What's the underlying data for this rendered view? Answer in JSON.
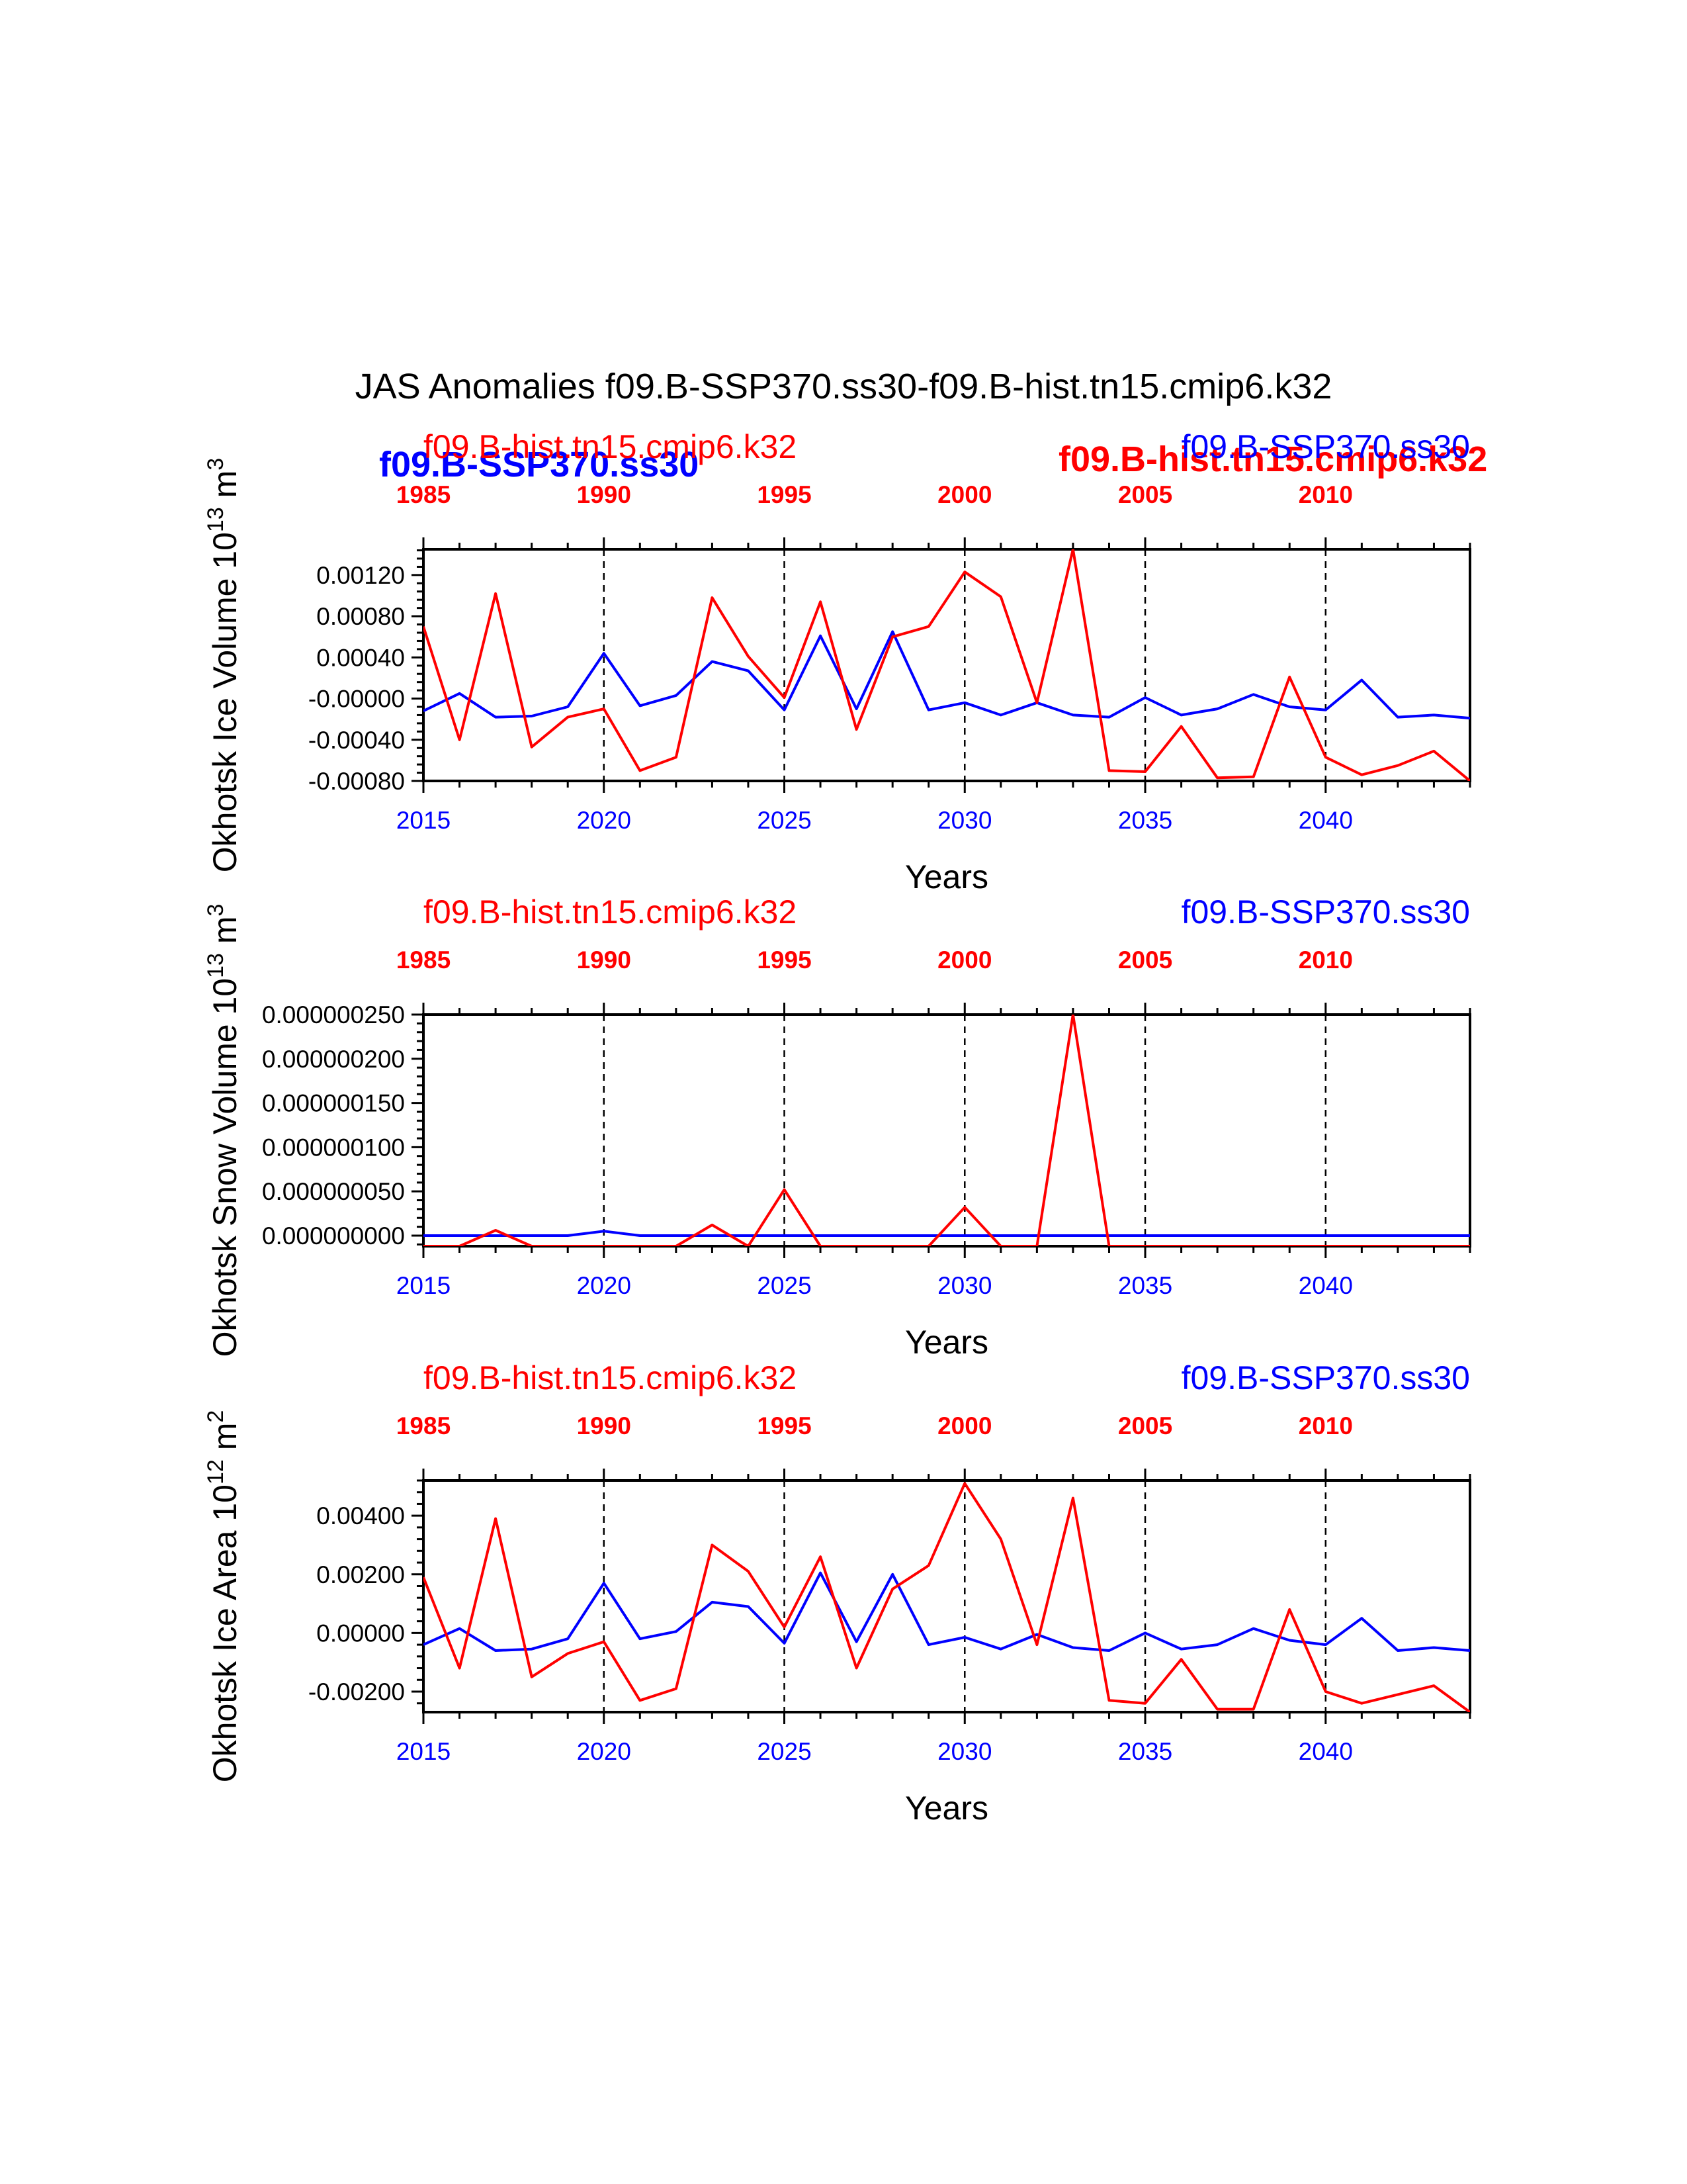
{
  "figure": {
    "title": "JAS Anomalies f09.B-SSP370.ss30-f09.B-hist.tn15.cmip6.k32",
    "xlabel": "Years",
    "colors": {
      "ssp": "#0000ff",
      "hist": "#ff0000",
      "axes": "#000000"
    },
    "overlay_labels": {
      "ssp_bold": "f09.B-SSP370.ss30",
      "hist_bold": "f09.B-hist.tn15.cmip6.k32"
    }
  },
  "chart_data": [
    {
      "type": "line",
      "ylabel": "Okhotsk Ice Volume 10",
      "ylabel_exp": "13",
      "ylabel_unit": " m",
      "ylabel_unit_exp": "3",
      "ylim": [
        -0.0008,
        0.00145
      ],
      "yticks": [
        -0.0008,
        -0.0004,
        0.0,
        0.0004,
        0.0008,
        0.0012
      ],
      "ytick_labels": [
        "-0.00080",
        "-0.00040",
        "-0.00000",
        "0.00040",
        "0.00080",
        "0.00120"
      ],
      "bottom_xlim": [
        2015,
        2044
      ],
      "bottom_ticks": [
        2015,
        2020,
        2025,
        2030,
        2035,
        2040
      ],
      "top_xlim": [
        1985,
        2014
      ],
      "top_ticks": [
        1985,
        1990,
        1995,
        2000,
        2005,
        2010
      ],
      "hist_label": "f09.B-hist.tn15.cmip6.k32",
      "ssp_label": "f09.B-SSP370.ss30",
      "series": [
        {
          "name": "f09.B-SSP370.ss30",
          "x": [
            2015,
            2016,
            2017,
            2018,
            2019,
            2020,
            2021,
            2022,
            2023,
            2024,
            2025,
            2026,
            2027,
            2028,
            2029,
            2030,
            2031,
            2032,
            2033,
            2034,
            2035,
            2036,
            2037,
            2038,
            2039,
            2040,
            2041,
            2042,
            2043,
            2044
          ],
          "values": [
            -0.00012,
            5e-05,
            -0.00018,
            -0.00017,
            -8e-05,
            0.00044,
            -7e-05,
            3e-05,
            0.00036,
            0.00027,
            -0.00011,
            0.00061,
            -0.0001,
            0.00065,
            -0.00011,
            -4e-05,
            -0.00016,
            -4e-05,
            -0.00016,
            -0.00018,
            1e-05,
            -0.00016,
            -0.0001,
            4e-05,
            -8e-05,
            -0.00011,
            0.00018,
            -0.00018,
            -0.00016,
            -0.00019
          ]
        },
        {
          "name": "f09.B-hist.tn15.cmip6.k32",
          "x": [
            1985,
            1986,
            1987,
            1988,
            1989,
            1990,
            1991,
            1992,
            1993,
            1994,
            1995,
            1996,
            1997,
            1998,
            1999,
            2000,
            2001,
            2002,
            2003,
            2004,
            2005,
            2006,
            2007,
            2008,
            2009,
            2010,
            2011,
            2012,
            2013,
            2014
          ],
          "values": [
            0.0007,
            -0.0004,
            0.00102,
            -0.00047,
            -0.00018,
            -0.0001,
            -0.0007,
            -0.00057,
            0.00098,
            0.00041,
            1e-05,
            0.00094,
            -0.0003,
            0.0006,
            0.0007,
            0.00123,
            0.00099,
            -4e-05,
            0.00145,
            -0.0007,
            -0.00071,
            -0.00027,
            -0.00077,
            -0.00076,
            0.00021,
            -0.00057,
            -0.00074,
            -0.00065,
            -0.00051,
            -0.0008
          ]
        }
      ]
    },
    {
      "type": "line",
      "ylabel": "Okhotsk Snow Volume 10",
      "ylabel_exp": "13",
      "ylabel_unit": " m",
      "ylabel_unit_exp": "3",
      "ylim": [
        -1.2e-08,
        2.5e-07
      ],
      "yticks": [
        0.0,
        5e-08,
        1e-07,
        1.5e-07,
        2e-07,
        2.5e-07
      ],
      "ytick_labels": [
        "0.000000000",
        "0.000000050",
        "0.000000100",
        "0.000000150",
        "0.000000200",
        "0.000000250"
      ],
      "bottom_xlim": [
        2015,
        2044
      ],
      "bottom_ticks": [
        2015,
        2020,
        2025,
        2030,
        2035,
        2040
      ],
      "top_xlim": [
        1985,
        2014
      ],
      "top_ticks": [
        1985,
        1990,
        1995,
        2000,
        2005,
        2010
      ],
      "hist_label": "f09.B-hist.tn15.cmip6.k32",
      "ssp_label": "f09.B-SSP370.ss30",
      "series": [
        {
          "name": "f09.B-SSP370.ss30",
          "x": [
            2015,
            2016,
            2017,
            2018,
            2019,
            2020,
            2021,
            2022,
            2023,
            2024,
            2025,
            2026,
            2027,
            2028,
            2029,
            2030,
            2031,
            2032,
            2033,
            2034,
            2035,
            2036,
            2037,
            2038,
            2039,
            2040,
            2041,
            2042,
            2043,
            2044
          ],
          "values": [
            0,
            0,
            0,
            0,
            0,
            5e-09,
            0,
            0,
            0,
            0,
            0,
            0,
            0,
            0,
            0,
            0,
            0,
            0,
            0,
            0,
            0,
            0,
            0,
            0,
            0,
            0,
            0,
            0,
            0,
            0
          ]
        },
        {
          "name": "f09.B-hist.tn15.cmip6.k32",
          "x": [
            1985,
            1986,
            1987,
            1988,
            1989,
            1990,
            1991,
            1992,
            1993,
            1994,
            1995,
            1996,
            1997,
            1998,
            1999,
            2000,
            2001,
            2002,
            2003,
            2004,
            2005,
            2006,
            2007,
            2008,
            2009,
            2010,
            2011,
            2012,
            2013,
            2014
          ],
          "values": [
            -1.2e-08,
            -1.2e-08,
            6e-09,
            -1.2e-08,
            -1.2e-08,
            -1.2e-08,
            -1.2e-08,
            -1.2e-08,
            1.2e-08,
            -1.2e-08,
            5.2e-08,
            -1.2e-08,
            -1.2e-08,
            -1.2e-08,
            -1.2e-08,
            3.2e-08,
            -1.2e-08,
            -1.2e-08,
            2.5e-07,
            -1.2e-08,
            -1.2e-08,
            -1.2e-08,
            -1.2e-08,
            -1.2e-08,
            -1.2e-08,
            -1.2e-08,
            -1.2e-08,
            -1.2e-08,
            -1.2e-08,
            -1.2e-08
          ]
        }
      ]
    },
    {
      "type": "line",
      "ylabel": "Okhotsk Ice Area 10",
      "ylabel_exp": "12",
      "ylabel_unit": " m",
      "ylabel_unit_exp": "2",
      "ylim": [
        -0.0027,
        0.0052
      ],
      "yticks": [
        -0.002,
        0.0,
        0.002,
        0.004
      ],
      "ytick_labels": [
        "-0.00200",
        "0.00000",
        "0.00200",
        "0.00400"
      ],
      "bottom_xlim": [
        2015,
        2044
      ],
      "bottom_ticks": [
        2015,
        2020,
        2025,
        2030,
        2035,
        2040
      ],
      "top_xlim": [
        1985,
        2014
      ],
      "top_ticks": [
        1985,
        1990,
        1995,
        2000,
        2005,
        2010
      ],
      "hist_label": "f09.B-hist.tn15.cmip6.k32",
      "ssp_label": "f09.B-SSP370.ss30",
      "series": [
        {
          "name": "f09.B-SSP370.ss30",
          "x": [
            2015,
            2016,
            2017,
            2018,
            2019,
            2020,
            2021,
            2022,
            2023,
            2024,
            2025,
            2026,
            2027,
            2028,
            2029,
            2030,
            2031,
            2032,
            2033,
            2034,
            2035,
            2036,
            2037,
            2038,
            2039,
            2040,
            2041,
            2042,
            2043,
            2044
          ],
          "values": [
            -0.0004,
            0.00015,
            -0.0006,
            -0.00055,
            -0.0002,
            0.0017,
            -0.0002,
            5e-05,
            0.00105,
            0.0009,
            -0.00035,
            0.00205,
            -0.0003,
            0.002,
            -0.0004,
            -0.00015,
            -0.00055,
            -5e-05,
            -0.0005,
            -0.0006,
            0.0,
            -0.00055,
            -0.0004,
            0.00015,
            -0.00025,
            -0.0004,
            0.0005,
            -0.0006,
            -0.0005,
            -0.0006
          ]
        },
        {
          "name": "f09.B-hist.tn15.cmip6.k32",
          "x": [
            1985,
            1986,
            1987,
            1988,
            1989,
            1990,
            1991,
            1992,
            1993,
            1994,
            1995,
            1996,
            1997,
            1998,
            1999,
            2000,
            2001,
            2002,
            2003,
            2004,
            2005,
            2006,
            2007,
            2008,
            2009,
            2010,
            2011,
            2012,
            2013,
            2014
          ],
          "values": [
            0.0019,
            -0.0012,
            0.0039,
            -0.0015,
            -0.0007,
            -0.0003,
            -0.0023,
            -0.0019,
            0.003,
            0.0021,
            0.0002,
            0.0026,
            -0.0012,
            0.0015,
            0.0023,
            0.0051,
            0.0032,
            -0.0004,
            0.0046,
            -0.0023,
            -0.0024,
            -0.0009,
            -0.0026,
            -0.0026,
            0.0008,
            -0.002,
            -0.0024,
            -0.0021,
            -0.0018,
            -0.0027
          ]
        }
      ]
    }
  ]
}
